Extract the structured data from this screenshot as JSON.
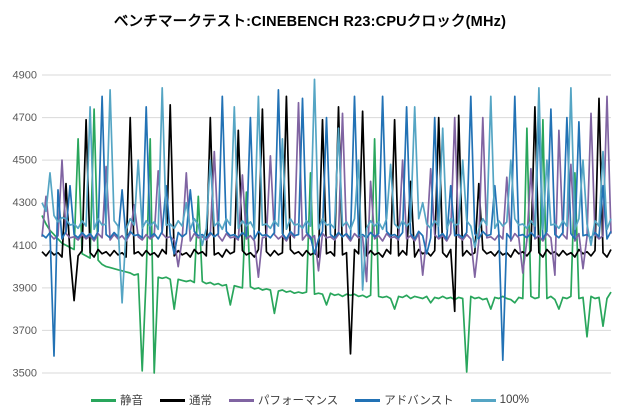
{
  "title": "ベンチマークテスト:CINEBENCH R23:CPUクロック(MHz)",
  "axis": {
    "tick_color": "#595959",
    "grid_color": "#d9d9d9"
  },
  "chart_data": {
    "type": "line",
    "title": "ベンチマークテスト:CINEBENCH R23:CPUクロック(MHz)",
    "xlabel": "",
    "ylabel": "",
    "ylim": [
      3500,
      4900
    ],
    "yticks": [
      3500,
      3700,
      3900,
      4100,
      4300,
      4500,
      4700,
      4900
    ],
    "grid": true,
    "legend_position": "bottom",
    "series": [
      {
        "name": "静音",
        "color": "#29a65c",
        "values": [
          4240,
          4200,
          4170,
          4150,
          4130,
          4110,
          4100,
          4090,
          4080,
          4600,
          4060,
          4050,
          4040,
          4740,
          4030,
          4010,
          4000,
          3995,
          3990,
          3985,
          3980,
          3975,
          3970,
          3960,
          3965,
          3510,
          3955,
          4600,
          3500,
          3950,
          3945,
          3950,
          3940,
          3800,
          3940,
          3935,
          3930,
          3935,
          3925,
          4330,
          3930,
          3920,
          3925,
          3915,
          3920,
          3910,
          3915,
          3820,
          3910,
          3905,
          3900,
          4350,
          3905,
          3895,
          3900,
          3890,
          3895,
          3890,
          3780,
          3885,
          3890,
          3880,
          3885,
          3875,
          3880,
          3875,
          3880,
          4440,
          3870,
          3875,
          3870,
          3820,
          3875,
          3865,
          3870,
          3860,
          3870,
          3865,
          3870,
          3860,
          3865,
          3855,
          3865,
          4600,
          3860,
          3855,
          3860,
          3850,
          3800,
          3860,
          3855,
          3865,
          3850,
          3860,
          3855,
          3850,
          3860,
          3830,
          3855,
          3850,
          3860,
          3850,
          3855,
          3845,
          3855,
          3850,
          3505,
          3860,
          3850,
          3855,
          3845,
          3850,
          3800,
          3855,
          3850,
          3860,
          3850,
          3845,
          3830,
          3855,
          3850,
          4650,
          3860,
          3850,
          3855,
          4690,
          3850,
          3860,
          3845,
          3800,
          3855,
          3850,
          3860,
          4440,
          3850,
          3855,
          3670,
          3860,
          3850,
          3855,
          3720,
          3850,
          3880
        ]
      },
      {
        "name": "通常",
        "color": "#000000",
        "values": [
          4070,
          4050,
          4075,
          4055,
          4065,
          4045,
          4390,
          4060,
          3840,
          4050,
          4075,
          4690,
          4065,
          4045,
          4080,
          4060,
          4070,
          4050,
          4075,
          4055,
          4065,
          4045,
          4700,
          4060,
          4070,
          4050,
          4075,
          4055,
          4065,
          4045,
          4080,
          4060,
          4760,
          4050,
          4075,
          4055,
          4065,
          4045,
          4080,
          4060,
          4070,
          4050,
          4700,
          4055,
          4065,
          4045,
          4080,
          4060,
          4070,
          4640,
          4075,
          4055,
          4065,
          4045,
          4080,
          4740,
          4070,
          4050,
          4075,
          4055,
          4065,
          4800,
          4080,
          4060,
          4070,
          4050,
          4075,
          4055,
          4065,
          4045,
          4690,
          4060,
          4070,
          4050,
          4750,
          4055,
          4065,
          3590,
          4080,
          4060,
          4730,
          4050,
          4075,
          4055,
          4065,
          4045,
          4080,
          4060,
          4690,
          4050,
          4075,
          4055,
          4400,
          4045,
          4080,
          4060,
          4070,
          4050,
          4075,
          4700,
          4065,
          4045,
          4080,
          3790,
          4710,
          4050,
          4075,
          4055,
          4065,
          4390,
          4080,
          4060,
          4070,
          4050,
          4075,
          4055,
          4065,
          4045,
          4080,
          4060,
          4070,
          4050,
          4075,
          4750,
          4065,
          4045,
          4080,
          4060,
          4070,
          4050,
          4075,
          4055,
          4065,
          4045,
          4080,
          4060,
          4070,
          4050,
          4075,
          4790,
          4065,
          4045,
          4080
        ]
      },
      {
        "name": "パフォーマンス",
        "color": "#8064a2",
        "values": [
          4140,
          4330,
          4150,
          4130,
          4145,
          4500,
          4155,
          4135,
          4140,
          4125,
          4150,
          4130,
          4145,
          4120,
          4155,
          4135,
          4470,
          4125,
          4150,
          4130,
          4145,
          4120,
          4155,
          4290,
          4140,
          4125,
          4150,
          4130,
          4145,
          4450,
          4155,
          4135,
          4140,
          4125,
          4000,
          4130,
          4440,
          4120,
          4155,
          4135,
          4140,
          4125,
          4150,
          4540,
          4145,
          4120,
          4155,
          4135,
          4140,
          4125,
          4430,
          4130,
          4145,
          4120,
          3950,
          4135,
          4140,
          4520,
          4150,
          4130,
          4145,
          4120,
          4155,
          4135,
          4770,
          4125,
          4150,
          4130,
          4145,
          3980,
          4155,
          4135,
          4140,
          4125,
          4150,
          4720,
          4145,
          4120,
          4155,
          4135,
          4140,
          3930,
          4400,
          4130,
          4145,
          4120,
          4155,
          4135,
          4140,
          4125,
          4500,
          4130,
          4145,
          4120,
          4155,
          3960,
          4140,
          4460,
          4150,
          4130,
          4145,
          4120,
          4155,
          4700,
          4140,
          4125,
          4150,
          4130,
          3950,
          4120,
          4700,
          4135,
          4140,
          4125,
          4150,
          4130,
          4420,
          4120,
          4155,
          4135,
          3970,
          4125,
          4460,
          4130,
          4145,
          4120,
          4155,
          4135,
          3960,
          4640,
          4150,
          4130,
          4480,
          4120,
          4155,
          3990,
          4140,
          4720,
          4150,
          4130,
          4145,
          4800,
          4155
        ]
      },
      {
        "name": "アドバンスト",
        "color": "#2272b5",
        "values": [
          4150,
          4135,
          4160,
          3580,
          4360,
          4130,
          4165,
          4380,
          4150,
          4135,
          4160,
          4140,
          4155,
          4130,
          4165,
          4800,
          4150,
          4135,
          4160,
          4140,
          4360,
          4130,
          4165,
          4145,
          4150,
          4135,
          4750,
          4140,
          4155,
          4130,
          4165,
          4380,
          4150,
          4060,
          4160,
          4140,
          4155,
          4360,
          4165,
          4145,
          4150,
          4135,
          4160,
          4140,
          4155,
          4800,
          4165,
          4145,
          4150,
          4135,
          4160,
          4140,
          4700,
          4130,
          4165,
          4145,
          4150,
          4135,
          4160,
          4830,
          4155,
          4130,
          4165,
          4145,
          4150,
          4790,
          4160,
          4140,
          4060,
          4130,
          4165,
          4700,
          4150,
          4135,
          4160,
          4140,
          4155,
          4130,
          4800,
          4145,
          4150,
          4135,
          4160,
          4140,
          4155,
          4800,
          4165,
          4145,
          4150,
          4135,
          4160,
          4750,
          4155,
          4130,
          4165,
          4145,
          4060,
          4135,
          4700,
          4140,
          4155,
          4130,
          4380,
          4145,
          4150,
          4135,
          4160,
          4800,
          4155,
          4130,
          4165,
          4145,
          4150,
          4380,
          4160,
          3560,
          4155,
          4130,
          4800,
          4145,
          4150,
          4135,
          4160,
          4140,
          4700,
          4130,
          4165,
          4740,
          4150,
          4135,
          4160,
          4700,
          4155,
          4130,
          4680,
          4145,
          4150,
          4135,
          4160,
          4140,
          4380,
          4130,
          4165
        ]
      },
      {
        "name": "100%",
        "color": "#55a5c4",
        "values": [
          4300,
          4260,
          4440,
          4240,
          4210,
          4230,
          4225,
          4195,
          4200,
          4180,
          4215,
          4190,
          4750,
          4175,
          4225,
          4195,
          4200,
          4830,
          4215,
          4190,
          3830,
          4175,
          4225,
          4195,
          4500,
          4180,
          4215,
          4190,
          4210,
          4175,
          4840,
          4195,
          4200,
          4180,
          4215,
          4190,
          4300,
          4175,
          4225,
          4195,
          4100,
          4180,
          4500,
          4190,
          4210,
          4175,
          4225,
          4195,
          4750,
          4180,
          4215,
          4190,
          4210,
          4175,
          4800,
          4195,
          4200,
          4180,
          4215,
          4190,
          4600,
          4175,
          4225,
          4195,
          4200,
          4180,
          4215,
          4190,
          4880,
          4175,
          4225,
          4195,
          4200,
          4180,
          4650,
          4190,
          4210,
          4175,
          4225,
          4500,
          3890,
          4180,
          4215,
          4190,
          4210,
          4175,
          4225,
          4480,
          4200,
          4180,
          4215,
          4190,
          4210,
          4750,
          4225,
          4300,
          4200,
          4180,
          4215,
          4190,
          4650,
          4175,
          4225,
          4195,
          4200,
          4500,
          4215,
          4190,
          4090,
          4175,
          4225,
          4195,
          4800,
          4180,
          4215,
          4190,
          4210,
          4500,
          4225,
          4195,
          4200,
          4180,
          4215,
          4190,
          4840,
          4175,
          4500,
          4195,
          4200,
          4180,
          4215,
          4190,
          4840,
          4175,
          4225,
          4500,
          4200,
          4100,
          4215,
          4190,
          4540,
          4175,
          4225
        ]
      }
    ]
  }
}
